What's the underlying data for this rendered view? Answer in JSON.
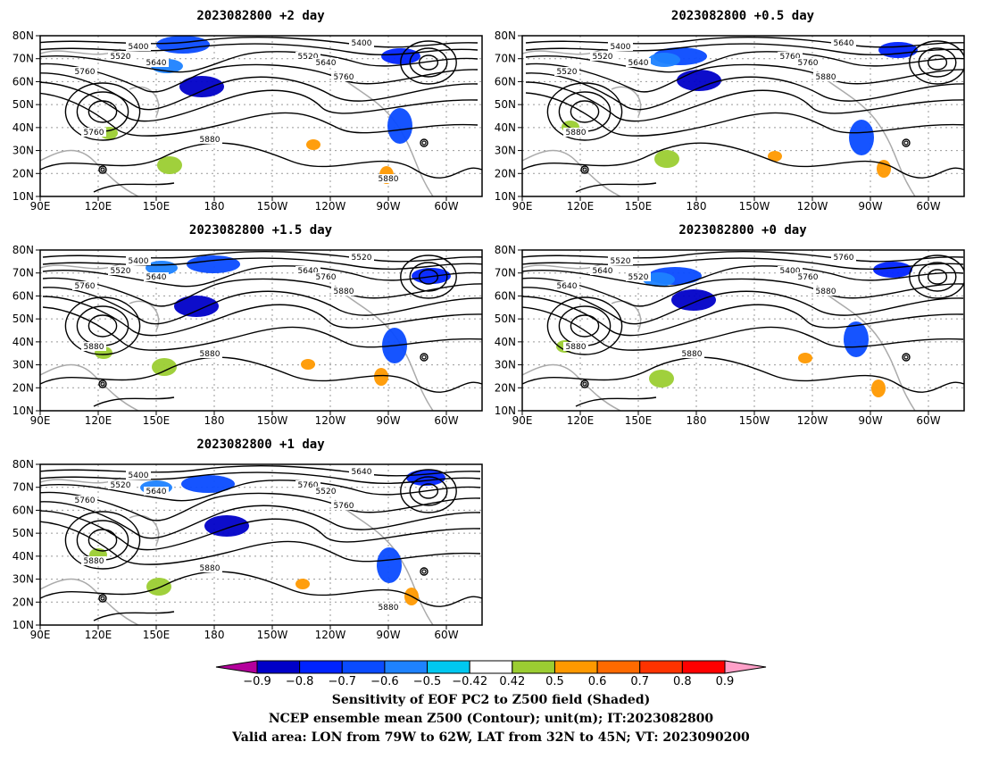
{
  "panels": [
    {
      "id": "p2",
      "title": "2023082800  +2 day",
      "contour_labels": [
        "5400",
        "5520",
        "5640",
        "5760",
        "5400",
        "5520",
        "5640",
        "5760",
        "5760",
        "5880",
        "5880"
      ]
    },
    {
      "id": "p05",
      "title": "2023082800  +0.5 day",
      "contour_labels": [
        "5400",
        "5520",
        "5640",
        "5520",
        "5640",
        "5760",
        "5760",
        "5880",
        "5880"
      ]
    },
    {
      "id": "p15",
      "title": "2023082800  +1.5 day",
      "contour_labels": [
        "5400",
        "5520",
        "5640",
        "5760",
        "5520",
        "5640",
        "5760",
        "5880",
        "5880",
        "5880"
      ]
    },
    {
      "id": "p0",
      "title": "2023082800  +0 day",
      "contour_labels": [
        "5520",
        "5640",
        "5520",
        "5640",
        "5760",
        "5400",
        "5760",
        "5880",
        "5880",
        "5880"
      ]
    },
    {
      "id": "p1",
      "title": "2023082800  +1 day",
      "contour_labels": [
        "5400",
        "5520",
        "5640",
        "5760",
        "5640",
        "5760",
        "5520",
        "5760",
        "5880",
        "5880",
        "5880"
      ]
    }
  ],
  "axes": {
    "lon_labels": [
      "90E",
      "120E",
      "150E",
      "180",
      "150W",
      "120W",
      "90W",
      "60W"
    ],
    "lat_labels": [
      "80N",
      "70N",
      "60N",
      "50N",
      "40N",
      "30N",
      "20N",
      "10N"
    ]
  },
  "colorbar": {
    "ticks": [
      "−0.9",
      "−0.8",
      "−0.7",
      "−0.6",
      "−0.5",
      "−0.42",
      "0.42",
      "0.5",
      "0.6",
      "0.7",
      "0.8",
      "0.9"
    ],
    "colors": [
      "#b4009c",
      "#0000c8",
      "#0023ff",
      "#0a4bff",
      "#1e82ff",
      "#00c8f0",
      "#ffffff",
      "#9bcd32",
      "#ff9900",
      "#ff6a00",
      "#ff3300",
      "#ff0000",
      "#ffa0c8"
    ]
  },
  "caption": {
    "line1": "Sensitivity of EOF PC2 to Z500 field (Shaded)",
    "line2": "NCEP ensemble mean Z500 (Contour); unit(m); IT:2023082800",
    "line3": "Valid area: LON from 79W to 62W, LAT from 32N to 45N; VT: 2023090200"
  }
}
